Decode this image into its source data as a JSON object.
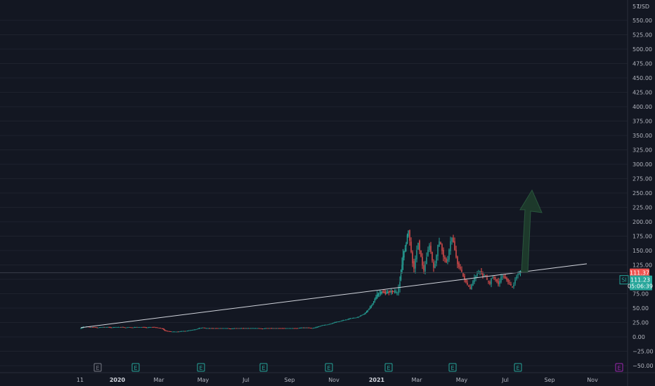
{
  "chart_data": {
    "type": "candlestick",
    "yaxis": {
      "unit_label": "USD",
      "top_partial_label": "57",
      "ticks": [
        "550.00",
        "525.00",
        "500.00",
        "475.00",
        "450.00",
        "425.00",
        "400.00",
        "375.00",
        "350.00",
        "325.00",
        "300.00",
        "275.00",
        "250.00",
        "225.00",
        "200.00",
        "175.00",
        "150.00",
        "125.00",
        "100.00",
        "75.00",
        "50.00",
        "25.00",
        "0.00",
        "−25.00",
        "−50.00"
      ],
      "tick_values": [
        550,
        525,
        500,
        475,
        450,
        425,
        400,
        375,
        350,
        325,
        300,
        275,
        250,
        225,
        200,
        175,
        150,
        125,
        100,
        75,
        50,
        25,
        0,
        -25,
        -50
      ],
      "ylim": [
        -61,
        583
      ]
    },
    "xaxis": {
      "ticks": [
        {
          "label": "11",
          "bold": false
        },
        {
          "label": "2020",
          "bold": true
        },
        {
          "label": "Mar",
          "bold": false
        },
        {
          "label": "May",
          "bold": false
        },
        {
          "label": "Jul",
          "bold": false
        },
        {
          "label": "Sep",
          "bold": false
        },
        {
          "label": "Nov",
          "bold": false
        },
        {
          "label": "2021",
          "bold": true
        },
        {
          "label": "Mar",
          "bold": false
        },
        {
          "label": "May",
          "bold": false
        },
        {
          "label": "Jul",
          "bold": false
        },
        {
          "label": "Sep",
          "bold": false
        },
        {
          "label": "Nov",
          "bold": false
        }
      ]
    },
    "price_path": [
      [
        0,
        14
      ],
      [
        5,
        17
      ],
      [
        10,
        18
      ],
      [
        15,
        17
      ],
      [
        20,
        17
      ],
      [
        25,
        16
      ],
      [
        30,
        17
      ],
      [
        35,
        17
      ],
      [
        40,
        17
      ],
      [
        45,
        16
      ],
      [
        50,
        17
      ],
      [
        55,
        17
      ],
      [
        60,
        17
      ],
      [
        65,
        16
      ],
      [
        70,
        17
      ],
      [
        75,
        16
      ],
      [
        80,
        17
      ],
      [
        85,
        17
      ],
      [
        90,
        17
      ],
      [
        95,
        16
      ],
      [
        100,
        17
      ],
      [
        105,
        17
      ],
      [
        110,
        16
      ],
      [
        115,
        15
      ],
      [
        118,
        14
      ],
      [
        121,
        11
      ],
      [
        125,
        10
      ],
      [
        130,
        9
      ],
      [
        135,
        9
      ],
      [
        140,
        9
      ],
      [
        145,
        10
      ],
      [
        150,
        10
      ],
      [
        155,
        11
      ],
      [
        160,
        12
      ],
      [
        165,
        13
      ],
      [
        170,
        15
      ],
      [
        175,
        16
      ],
      [
        180,
        15
      ],
      [
        185,
        15
      ],
      [
        190,
        15
      ],
      [
        195,
        15
      ],
      [
        200,
        15
      ],
      [
        205,
        15
      ],
      [
        210,
        15
      ],
      [
        215,
        14
      ],
      [
        220,
        15
      ],
      [
        225,
        15
      ],
      [
        230,
        15
      ],
      [
        235,
        15
      ],
      [
        240,
        15
      ],
      [
        245,
        15
      ],
      [
        250,
        15
      ],
      [
        255,
        15
      ],
      [
        260,
        14
      ],
      [
        265,
        15
      ],
      [
        270,
        15
      ],
      [
        275,
        15
      ],
      [
        280,
        15
      ],
      [
        285,
        15
      ],
      [
        290,
        15
      ],
      [
        295,
        15
      ],
      [
        300,
        15
      ],
      [
        305,
        15
      ],
      [
        310,
        15
      ],
      [
        315,
        16
      ],
      [
        320,
        16
      ],
      [
        325,
        16
      ],
      [
        330,
        15
      ],
      [
        335,
        16
      ],
      [
        340,
        18
      ],
      [
        345,
        20
      ],
      [
        350,
        21
      ],
      [
        355,
        22
      ],
      [
        360,
        24
      ],
      [
        365,
        26
      ],
      [
        370,
        27
      ],
      [
        375,
        29
      ],
      [
        380,
        30
      ],
      [
        385,
        32
      ],
      [
        390,
        33
      ],
      [
        395,
        34
      ],
      [
        400,
        37
      ],
      [
        405,
        40
      ],
      [
        410,
        46
      ],
      [
        415,
        55
      ],
      [
        420,
        66
      ],
      [
        425,
        75
      ],
      [
        430,
        78
      ],
      [
        435,
        76
      ],
      [
        440,
        78
      ],
      [
        445,
        79
      ],
      [
        450,
        78
      ],
      [
        452,
        76
      ],
      [
        454,
        85
      ],
      [
        457,
        110
      ],
      [
        460,
        140
      ],
      [
        463,
        155
      ],
      [
        466,
        175
      ],
      [
        468,
        185
      ],
      [
        470,
        168
      ],
      [
        472,
        145
      ],
      [
        474,
        130
      ],
      [
        476,
        120
      ],
      [
        478,
        135
      ],
      [
        480,
        150
      ],
      [
        482,
        165
      ],
      [
        484,
        152
      ],
      [
        486,
        138
      ],
      [
        488,
        125
      ],
      [
        490,
        115
      ],
      [
        492,
        125
      ],
      [
        494,
        140
      ],
      [
        496,
        152
      ],
      [
        498,
        158
      ],
      [
        500,
        148
      ],
      [
        502,
        132
      ],
      [
        504,
        118
      ],
      [
        506,
        128
      ],
      [
        508,
        142
      ],
      [
        510,
        158
      ],
      [
        512,
        165
      ],
      [
        514,
        160
      ],
      [
        516,
        150
      ],
      [
        518,
        140
      ],
      [
        520,
        134
      ],
      [
        522,
        130
      ],
      [
        524,
        136
      ],
      [
        526,
        150
      ],
      [
        528,
        165
      ],
      [
        530,
        172
      ],
      [
        532,
        165
      ],
      [
        534,
        152
      ],
      [
        536,
        138
      ],
      [
        538,
        128
      ],
      [
        540,
        122
      ],
      [
        542,
        118
      ],
      [
        544,
        112
      ],
      [
        546,
        105
      ],
      [
        548,
        100
      ],
      [
        550,
        95
      ],
      [
        552,
        90
      ],
      [
        554,
        86
      ],
      [
        556,
        84
      ],
      [
        558,
        90
      ],
      [
        560,
        96
      ],
      [
        562,
        102
      ],
      [
        564,
        106
      ],
      [
        566,
        110
      ],
      [
        568,
        112
      ],
      [
        570,
        114
      ],
      [
        572,
        110
      ],
      [
        574,
        106
      ],
      [
        576,
        108
      ],
      [
        578,
        104
      ],
      [
        580,
        98
      ],
      [
        582,
        95
      ],
      [
        584,
        93
      ],
      [
        586,
        100
      ],
      [
        588,
        104
      ],
      [
        590,
        102
      ],
      [
        592,
        100
      ],
      [
        594,
        96
      ],
      [
        596,
        92
      ],
      [
        598,
        97
      ],
      [
        600,
        103
      ],
      [
        602,
        106
      ],
      [
        604,
        104
      ],
      [
        606,
        102
      ],
      [
        608,
        100
      ],
      [
        610,
        96
      ],
      [
        612,
        93
      ],
      [
        614,
        88
      ],
      [
        616,
        86
      ],
      [
        618,
        92
      ],
      [
        620,
        100
      ],
      [
        622,
        106
      ],
      [
        624,
        110
      ],
      [
        627,
        111.23
      ]
    ],
    "current_price": "111.37",
    "last_price": "111.23",
    "countdown": "05:06:39",
    "symbol": "SI",
    "trendline": {
      "from": [
        0,
        16
      ],
      "to": [
        720,
        127
      ]
    },
    "target_arrow": {
      "from_price": 112,
      "to_price": 255
    },
    "earnings_markers": [
      "E",
      "E",
      "E",
      "E",
      "E",
      "E",
      "E",
      "E",
      "E",
      "E"
    ],
    "colors": {
      "up": "#26a69a",
      "down": "#ef5350",
      "background": "#131722",
      "grid": "#1e222d",
      "trendline": "#d1d4dc",
      "arrow": "#1f3a2a",
      "future_event": "#9c27b0"
    }
  }
}
